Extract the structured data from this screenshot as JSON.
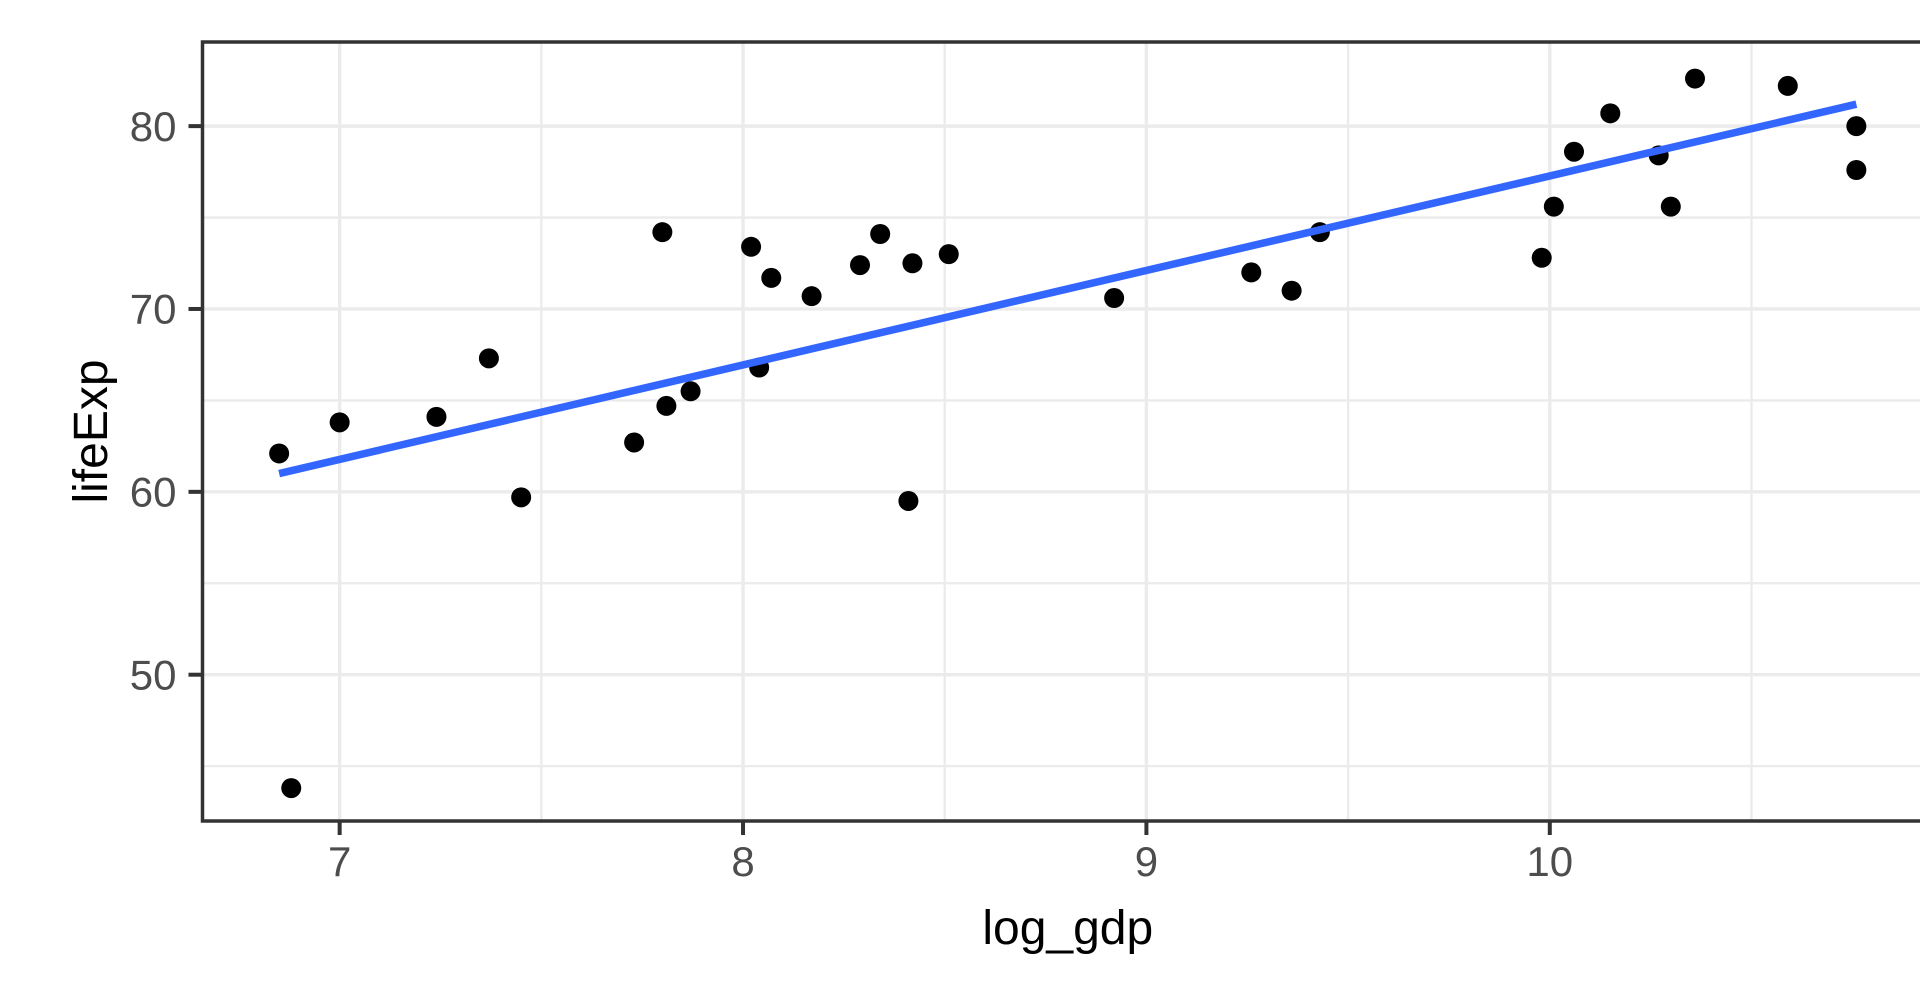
{
  "chart_data": {
    "type": "scatter",
    "title": "",
    "xlabel": "log_gdp",
    "ylabel": "lifeExp",
    "xlim": [
      6.66,
      10.95
    ],
    "ylim": [
      42.0,
      84.6
    ],
    "x_ticks": [
      7,
      8,
      9,
      10
    ],
    "x_tick_labels": [
      "7",
      "8",
      "9",
      "10"
    ],
    "y_ticks": [
      50,
      60,
      70,
      80
    ],
    "y_tick_labels": [
      "50",
      "60",
      "70",
      "80"
    ],
    "x_minor_gridlines": [
      7.5,
      8.5,
      9.5,
      10.5
    ],
    "y_minor_gridlines": [
      45,
      55,
      65,
      75
    ],
    "grid": true,
    "legend": "none",
    "points": [
      [
        6.85,
        62.1
      ],
      [
        6.88,
        43.8
      ],
      [
        7.0,
        63.8
      ],
      [
        7.24,
        64.1
      ],
      [
        7.37,
        67.3
      ],
      [
        7.45,
        59.7
      ],
      [
        7.73,
        62.7
      ],
      [
        7.8,
        74.2
      ],
      [
        7.81,
        64.7
      ],
      [
        7.87,
        65.5
      ],
      [
        8.02,
        73.4
      ],
      [
        8.04,
        66.8
      ],
      [
        8.07,
        71.7
      ],
      [
        8.17,
        70.7
      ],
      [
        8.29,
        72.4
      ],
      [
        8.34,
        74.1
      ],
      [
        8.41,
        59.5
      ],
      [
        8.42,
        72.5
      ],
      [
        8.51,
        73.0
      ],
      [
        8.92,
        70.6
      ],
      [
        9.26,
        72.0
      ],
      [
        9.36,
        71.0
      ],
      [
        9.43,
        74.2
      ],
      [
        9.98,
        72.8
      ],
      [
        10.01,
        75.6
      ],
      [
        10.06,
        78.6
      ],
      [
        10.15,
        80.7
      ],
      [
        10.27,
        78.4
      ],
      [
        10.3,
        75.6
      ],
      [
        10.36,
        82.6
      ],
      [
        10.59,
        82.2
      ],
      [
        10.76,
        77.6
      ],
      [
        10.76,
        80.0
      ]
    ],
    "trend_line": {
      "type": "linear",
      "x1": 6.85,
      "y1": 61.0,
      "x2": 10.76,
      "y2": 81.2
    },
    "colors": {
      "background": "#ffffff",
      "panel_background": "#ffffff",
      "grid_major": "#ebebeb",
      "grid_minor": "#ebebeb",
      "panel_border": "#333333",
      "tick_mark": "#333333",
      "tick_label": "#4d4d4d",
      "axis_title": "#000000",
      "point": "#000000",
      "trend_line": "#3366ff"
    }
  }
}
